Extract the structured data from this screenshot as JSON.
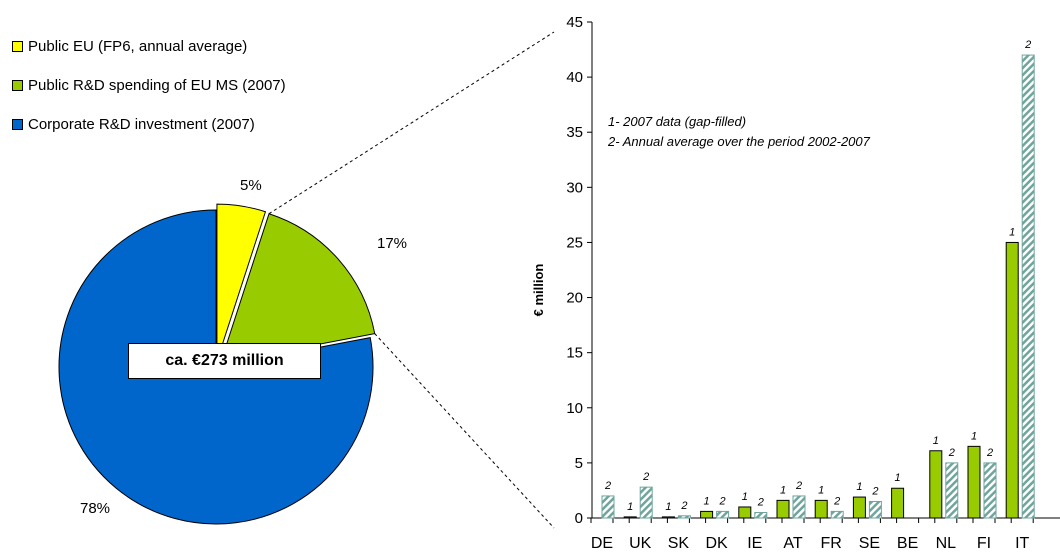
{
  "chart_data": [
    {
      "type": "pie",
      "slices": [
        {
          "name": "Public EU (FP6, annual average)",
          "value": 5,
          "label": "5%",
          "color": "#ffff00"
        },
        {
          "name": "Public R&D spending of EU MS (2007)",
          "value": 17,
          "label": "17%",
          "color": "#99cc00"
        },
        {
          "name": "Corporate R&D investment (2007)",
          "value": 78,
          "label": "78%",
          "color": "#0066cc"
        }
      ],
      "total_label": "ca. €273 million",
      "legend": "top-left"
    },
    {
      "type": "bar",
      "ylabel": "€ million",
      "ylim": [
        0,
        45
      ],
      "yticks": [
        0,
        5,
        10,
        15,
        20,
        25,
        30,
        35,
        40,
        45
      ],
      "categories": [
        "DE",
        "UK",
        "SK",
        "DK",
        "IE",
        "AT",
        "FR",
        "SE",
        "BE",
        "NL",
        "FI",
        "IT"
      ],
      "notes": [
        "1- 2007 data (gap-filled)",
        "2- Annual average over the period 2002-2007"
      ],
      "series": [
        {
          "marker": "1",
          "color": "#99cc00",
          "values": [
            null,
            0.1,
            0.1,
            0.6,
            1.0,
            1.6,
            1.6,
            1.9,
            2.7,
            6.1,
            6.5,
            25.0
          ]
        },
        {
          "marker": "2",
          "color": "#99cccc",
          "values": [
            2.0,
            2.8,
            0.2,
            0.6,
            0.5,
            2.0,
            0.6,
            1.5,
            null,
            5.0,
            5.0,
            42.0
          ]
        }
      ]
    }
  ]
}
